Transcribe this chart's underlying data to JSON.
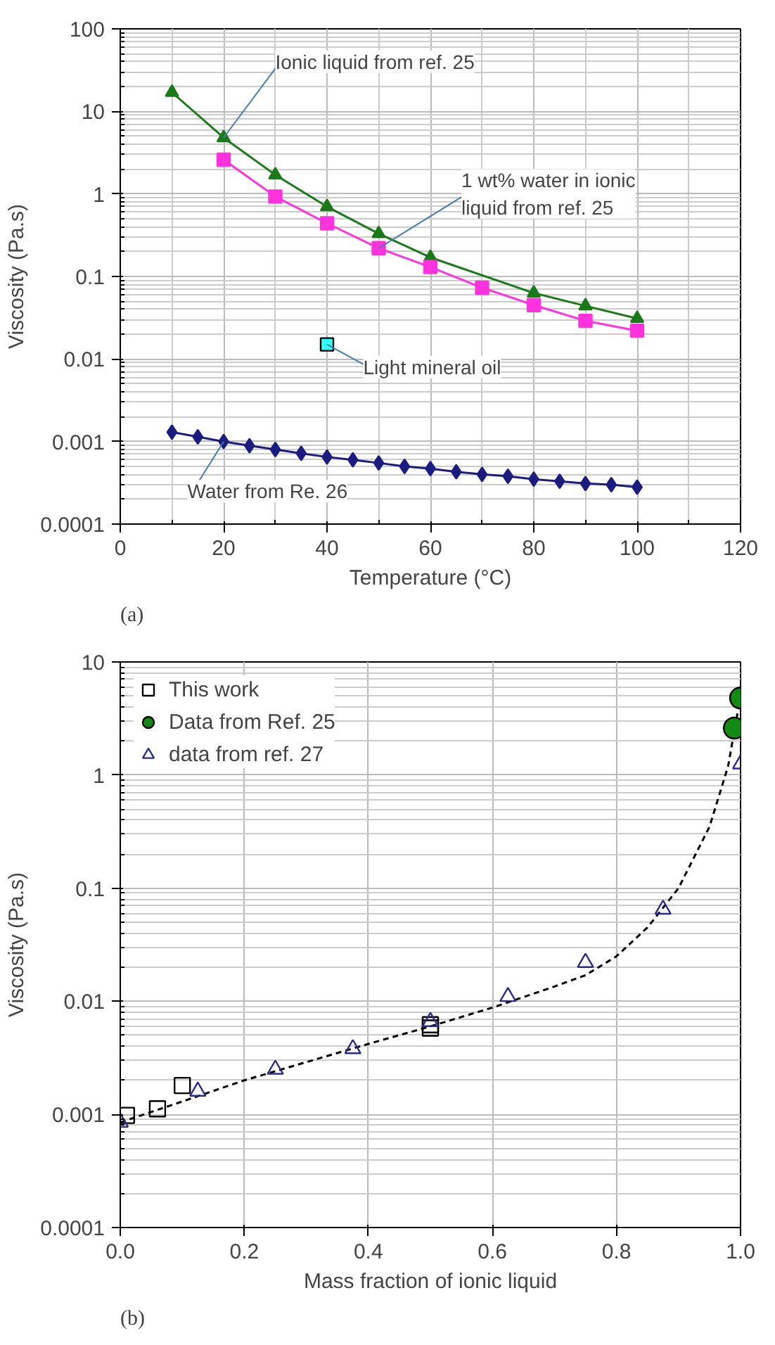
{
  "chart_data": [
    {
      "type": "line",
      "xlabel": "Temperature (°C)",
      "ylabel": "Viscosity (Pa.s)",
      "annotations": [
        "(a)"
      ],
      "log": "y",
      "grid": true,
      "legend": false,
      "line_style": "solid",
      "xlim": [
        0,
        120
      ],
      "xticks": [
        0,
        20,
        40,
        60,
        80,
        100,
        120
      ],
      "ylim": [
        0.0001,
        100
      ],
      "yticks": [
        0.0001,
        0.001,
        0.01,
        0.1,
        1,
        10,
        100
      ],
      "series": [
        {
          "name": "Ionic liquid from ref. 25",
          "type": "line",
          "marker": "triangle",
          "color": "#1a7a1a",
          "x": [
            10,
            20,
            30,
            40,
            50,
            60,
            80,
            90,
            100
          ],
          "values": [
            17,
            4.8,
            1.7,
            0.7,
            0.33,
            0.17,
            0.063,
            0.044,
            0.031
          ]
        },
        {
          "name": "1 wt% water in ionic liquid from ref. 25",
          "type": "line",
          "marker": "square",
          "color": "#ff33dd",
          "x": [
            20,
            30,
            40,
            50,
            60,
            70,
            80,
            90,
            100
          ],
          "values": [
            2.6,
            0.93,
            0.44,
            0.22,
            0.13,
            0.073,
            0.045,
            0.029,
            0.022
          ]
        },
        {
          "name": "Light mineral oil",
          "type": "scatter",
          "marker": "square",
          "color": "#33ffff",
          "x": [
            40
          ],
          "values": [
            0.015
          ]
        },
        {
          "name": "Water from Re. 26",
          "type": "line",
          "marker": "diamond",
          "color": "#1c1c80",
          "x": [
            10,
            15,
            20,
            25,
            30,
            35,
            40,
            45,
            50,
            55,
            60,
            65,
            70,
            75,
            80,
            85,
            90,
            95,
            100
          ],
          "values": [
            0.0013,
            0.00114,
            0.001,
            0.00089,
            0.0008,
            0.00072,
            0.00065,
            0.0006,
            0.00055,
            0.0005,
            0.00047,
            0.00043,
            0.0004,
            0.00038,
            0.00035,
            0.00033,
            0.00031,
            0.0003,
            0.00028
          ]
        }
      ]
    },
    {
      "type": "scatter",
      "xlabel": "Mass fraction of ionic liquid",
      "ylabel": "Viscosity (Pa.s)",
      "annotations": [
        "(b)"
      ],
      "log": "y",
      "grid": true,
      "legend": "top left",
      "xlim": [
        0,
        1
      ],
      "xticks": [
        {
          "value": 0,
          "label": "0.0"
        },
        {
          "value": 0.2,
          "label": "0.2"
        },
        {
          "value": 0.4,
          "label": "0.4"
        },
        {
          "value": 0.6,
          "label": "0.6"
        },
        {
          "value": 0.8,
          "label": "0.8"
        },
        {
          "value": 1,
          "label": "1.0"
        }
      ],
      "ylim": [
        0.0001,
        10
      ],
      "yticks": [
        0.0001,
        0.001,
        0.01,
        0.1,
        1,
        10
      ],
      "series": [
        {
          "type": "line",
          "line_style": "dashed",
          "marker": "none",
          "color": "#000000",
          "x": [
            0,
            0.1,
            0.2,
            0.3,
            0.4,
            0.5,
            0.6,
            0.7,
            0.75,
            0.8,
            0.85,
            0.9,
            0.95,
            0.98,
            0.995
          ],
          "values": [
            0.00085,
            0.0013,
            0.002,
            0.0029,
            0.0042,
            0.006,
            0.0088,
            0.0135,
            0.017,
            0.025,
            0.045,
            0.1,
            0.35,
            1.2,
            3.5
          ]
        },
        {
          "name": "This work",
          "type": "scatter",
          "marker": "square",
          "color": "#000000",
          "x": [
            0.01,
            0.06,
            0.1,
            0.5,
            0.5
          ],
          "values": [
            0.00098,
            0.00112,
            0.0018,
            0.0058,
            0.0062
          ]
        },
        {
          "name": "Data from Ref. 25",
          "type": "scatter",
          "marker": "circle",
          "color": "#138a13",
          "x": [
            1.0,
            0.99
          ],
          "values": [
            4.8,
            2.6
          ]
        },
        {
          "name": "data from ref. 27",
          "type": "scatter",
          "marker": "triangle",
          "color": "#2b2b8c",
          "x": [
            0,
            0.125,
            0.25,
            0.375,
            0.5,
            0.625,
            0.75,
            0.875,
            1.0
          ],
          "values": [
            0.00085,
            0.0016,
            0.0025,
            0.0038,
            0.0066,
            0.011,
            0.022,
            0.065,
            1.25
          ]
        }
      ]
    }
  ]
}
